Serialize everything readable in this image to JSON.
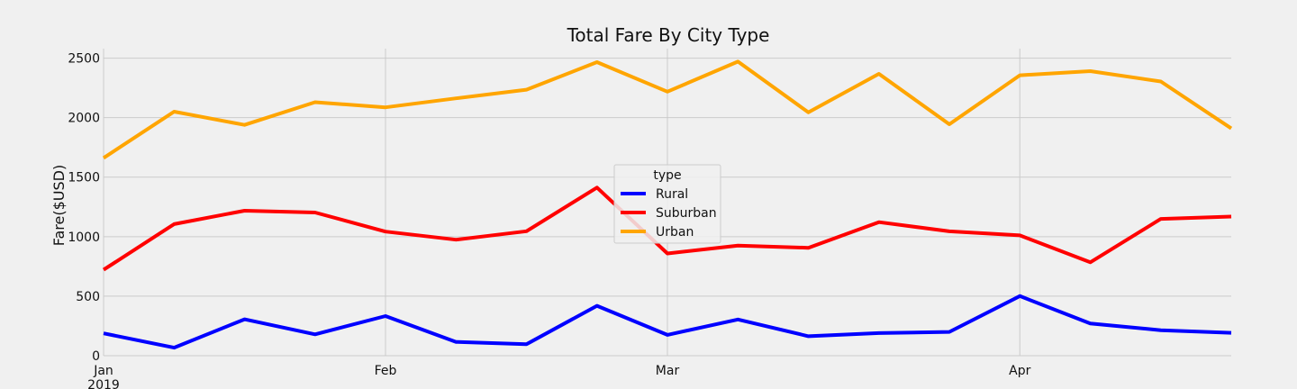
{
  "chart_data": {
    "type": "line",
    "title": "Total Fare By City Type",
    "xlabel": "",
    "ylabel": "Fare($USD)",
    "x": [
      "2019-01-06",
      "2019-01-13",
      "2019-01-20",
      "2019-01-27",
      "2019-02-03",
      "2019-02-10",
      "2019-02-17",
      "2019-02-24",
      "2019-03-03",
      "2019-03-10",
      "2019-03-17",
      "2019-03-24",
      "2019-03-31",
      "2019-04-07",
      "2019-04-14",
      "2019-04-21",
      "2019-04-28"
    ],
    "xlim": [
      "2019-01-06",
      "2019-04-28"
    ],
    "ylim": [
      0,
      2580
    ],
    "x_ticks": [
      {
        "date": "2019-01-06",
        "label": "Jan",
        "sublabel": "2019"
      },
      {
        "date": "2019-02-03",
        "label": "Feb",
        "sublabel": ""
      },
      {
        "date": "2019-03-03",
        "label": "Mar",
        "sublabel": ""
      },
      {
        "date": "2019-04-07",
        "label": "Apr",
        "sublabel": ""
      }
    ],
    "y_ticks": [
      0,
      500,
      1000,
      1500,
      2000,
      2500
    ],
    "grid": true,
    "legend": {
      "title": "type",
      "placement": "center"
    },
    "series": [
      {
        "name": "Rural",
        "color": "#0000ff",
        "values": [
          187.92,
          67.65,
          306.0,
          179.69,
          333.08,
          115.8,
          95.82,
          419.06,
          175.14,
          303.94,
          163.39,
          189.76,
          199.42,
          501.24,
          269.79,
          214.14,
          191.85
        ]
      },
      {
        "name": "Suburban",
        "color": "#ff0000",
        "values": [
          721.6,
          1105.13,
          1218.2,
          1203.28,
          1042.79,
          974.34,
          1045.5,
          1412.74,
          858.46,
          925.27,
          906.2,
          1122.2,
          1045.06,
          1010.73,
          784.82,
          1149.27,
          1169.04
        ]
      },
      {
        "name": "Urban",
        "color": "#ffa500",
        "values": [
          1661.68,
          2050.43,
          1939.02,
          2129.51,
          2086.94,
          2162.64,
          2235.07,
          2466.29,
          2218.2,
          2470.93,
          2044.42,
          2368.37,
          1944.1,
          2356.0,
          2390.72,
          2303.8,
          1909.51
        ]
      }
    ]
  }
}
